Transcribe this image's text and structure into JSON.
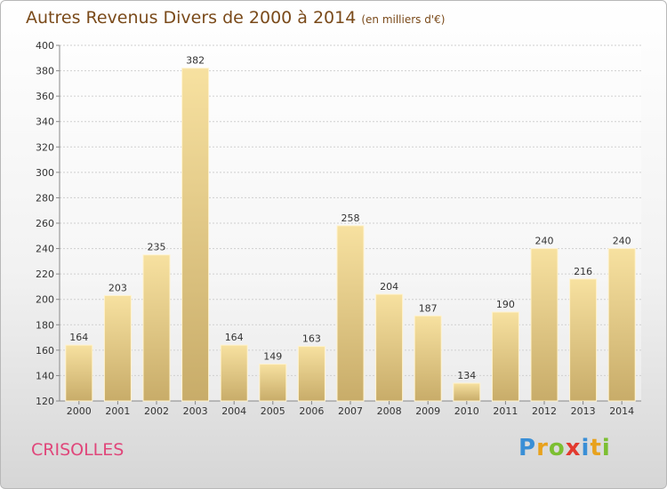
{
  "title": "Autres Revenus Divers de 2000 à 2014",
  "subtitle": "(en milliers d'€)",
  "commune": "CRISOLLES",
  "logo": {
    "text": "Proxiti",
    "letters": [
      {
        "ch": "P",
        "color": "#3a8fd6"
      },
      {
        "ch": "r",
        "color": "#e8a21d"
      },
      {
        "ch": "o",
        "color": "#7cbf32"
      },
      {
        "ch": "x",
        "color": "#e23a2f"
      },
      {
        "ch": "i",
        "color": "#3a8fd6"
      },
      {
        "ch": "t",
        "color": "#e8a21d"
      },
      {
        "ch": "i",
        "color": "#7cbf32"
      }
    ]
  },
  "colors": {
    "title": "#7a4a1a",
    "commune": "#e0467a",
    "bar_light": "#f7e1a0",
    "bar_dark": "#c8ac69",
    "grid": "#cfcfcf"
  },
  "chart_data": {
    "type": "bar",
    "title": "Autres Revenus Divers de 2000 à 2014",
    "subtitle": "(en milliers d'€)",
    "categories": [
      "2000",
      "2001",
      "2002",
      "2003",
      "2004",
      "2005",
      "2006",
      "2007",
      "2008",
      "2009",
      "2010",
      "2011",
      "2012",
      "2013",
      "2014"
    ],
    "values": [
      164,
      203,
      235,
      382,
      164,
      149,
      163,
      258,
      204,
      187,
      134,
      190,
      240,
      216,
      240
    ],
    "ylim": [
      120,
      400
    ],
    "yticks": [
      120,
      140,
      160,
      180,
      200,
      220,
      240,
      260,
      280,
      300,
      320,
      340,
      360,
      380,
      400
    ],
    "xlabel": "",
    "ylabel": "",
    "grid": true,
    "legend": "none"
  }
}
